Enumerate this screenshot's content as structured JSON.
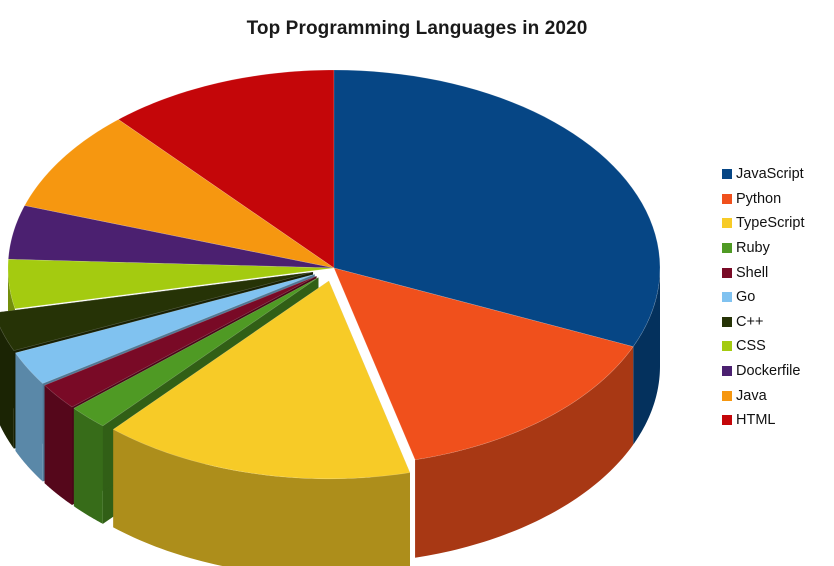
{
  "chart_data": {
    "type": "pie",
    "title": "Top Programming Languages in 2020",
    "legend_position": "right",
    "slices": [
      {
        "label": "JavaScript",
        "value": 31.5,
        "color": "#064685",
        "exploded": false
      },
      {
        "label": "Python",
        "value": 14.5,
        "color": "#f0501c",
        "exploded": false
      },
      {
        "label": "TypeScript",
        "value": 15.5,
        "color": "#f7cb27",
        "exploded": true
      },
      {
        "label": "Ruby",
        "value": 2.0,
        "color": "#4f9a24",
        "exploded": true
      },
      {
        "label": "Shell",
        "value": 2.2,
        "color": "#790a26",
        "exploded": true
      },
      {
        "label": "Go",
        "value": 2.8,
        "color": "#80c2f0",
        "exploded": true
      },
      {
        "label": "C++",
        "value": 3.2,
        "color": "#263306",
        "exploded": true
      },
      {
        "label": "CSS",
        "value": 4.0,
        "color": "#a4cb10",
        "exploded": false
      },
      {
        "label": "Dockerfile",
        "value": 4.4,
        "color": "#4b2070",
        "exploded": false
      },
      {
        "label": "Java",
        "value": 8.4,
        "color": "#f69710",
        "exploded": false
      },
      {
        "label": "HTML",
        "value": 11.5,
        "color": "#c40609",
        "exploded": false
      }
    ]
  }
}
